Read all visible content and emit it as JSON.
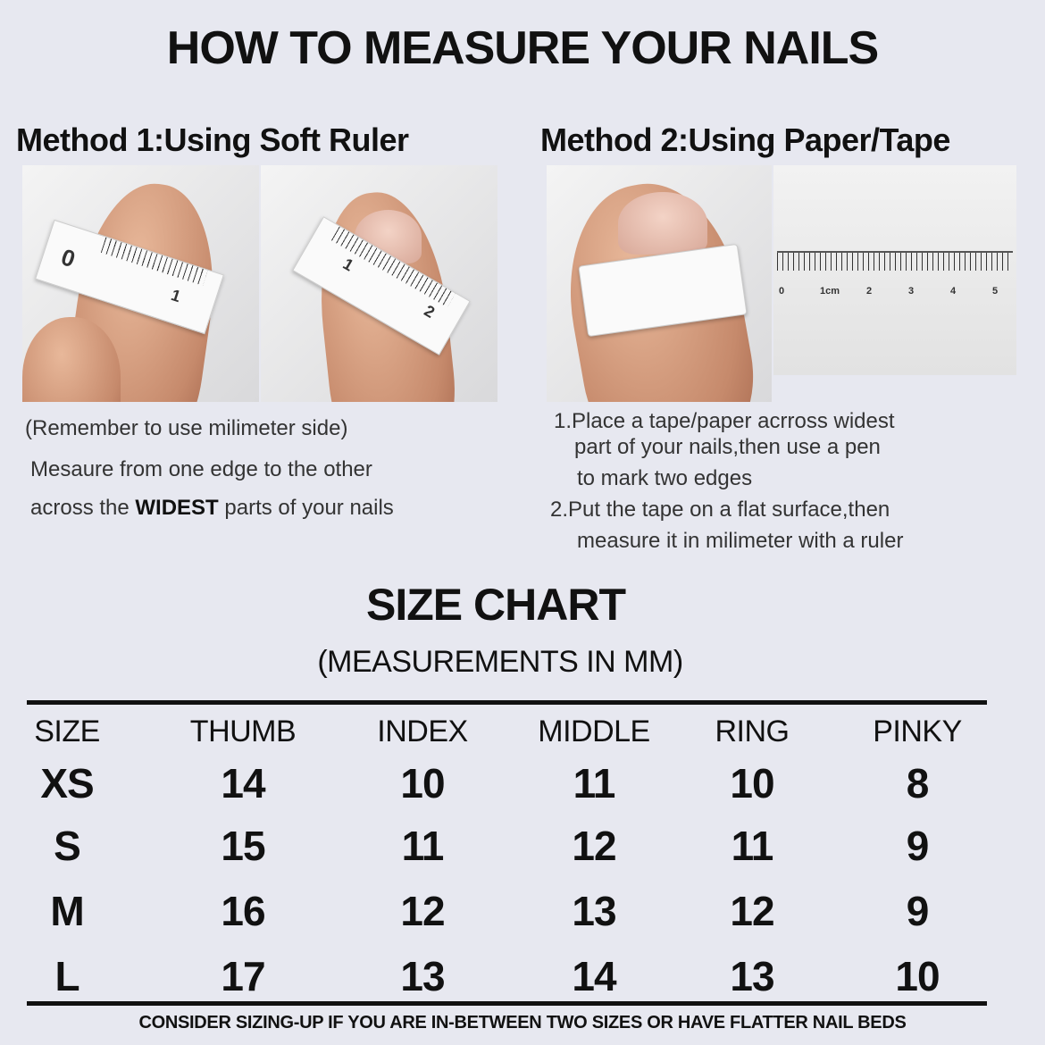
{
  "title": "HOW TO MEASURE YOUR NAILS",
  "method1": {
    "heading": "Method 1:Using Soft Ruler",
    "note": "(Remember to use milimeter side)",
    "line1": "Mesaure from one edge to the other",
    "line2_pre": "across the ",
    "line2_bold": "WIDEST",
    "line2_post": " parts of your nails"
  },
  "method2": {
    "heading": "Method 2:Using Paper/Tape",
    "step1a": "1.Place a tape/paper acrross widest",
    "step1b": "part of your nails,then use a pen",
    "step1c": "to mark two edges",
    "step2a": "2.Put the tape on a flat surface,then",
    "step2b": "measure it in milimeter with a ruler",
    "ruler_labels": [
      "0",
      "1cm",
      "2",
      "3",
      "4",
      "5"
    ]
  },
  "tape_labels": {
    "a0": "0",
    "a1": "1",
    "b1": "1",
    "b2": "2"
  },
  "size_chart": {
    "title": "SIZE CHART",
    "subtitle": "(MEASUREMENTS IN MM)",
    "headers": [
      "SIZE",
      "THUMB",
      "INDEX",
      "MIDDLE",
      "RING",
      "PINKY"
    ],
    "rows": [
      [
        "XS",
        "14",
        "10",
        "11",
        "10",
        "8"
      ],
      [
        "S",
        "15",
        "11",
        "12",
        "11",
        "9"
      ],
      [
        "M",
        "16",
        "12",
        "13",
        "12",
        "9"
      ],
      [
        "L",
        "17",
        "13",
        "14",
        "13",
        "10"
      ]
    ],
    "note": "CONSIDER SIZING-UP IF YOU ARE IN-BETWEEN TWO SIZES OR HAVE FLATTER NAIL BEDS"
  }
}
